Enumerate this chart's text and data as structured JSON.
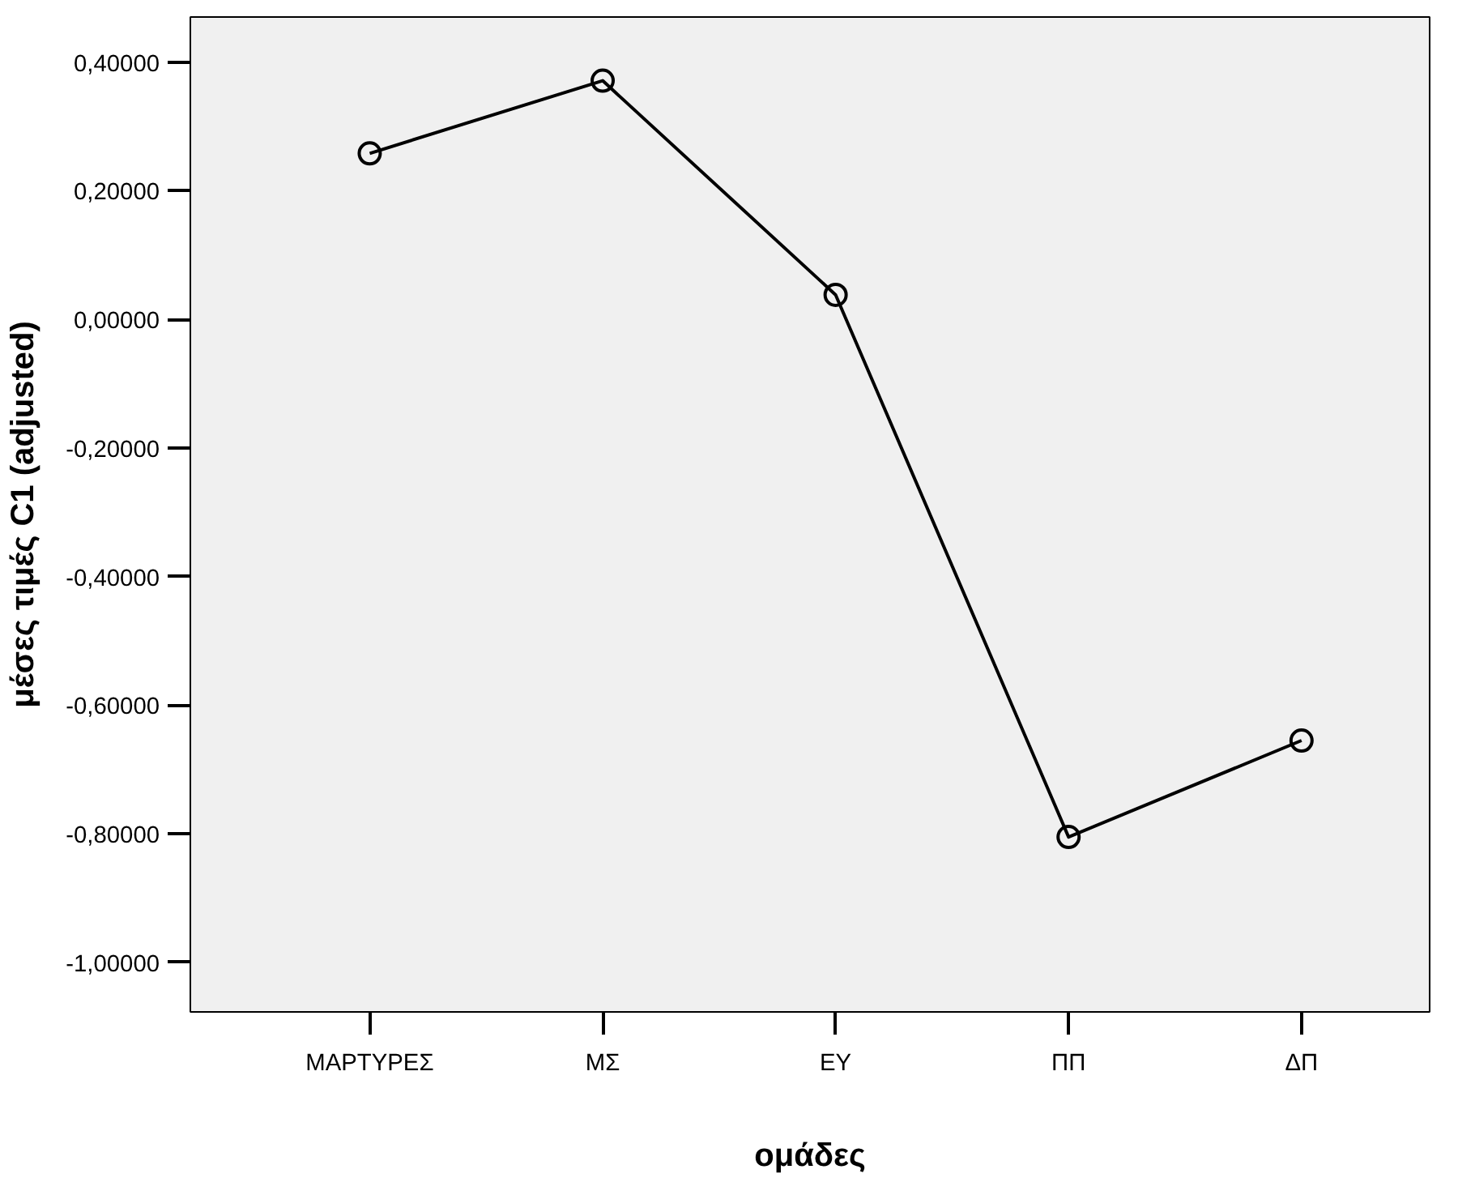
{
  "chart_data": {
    "type": "line",
    "xlabel": "ομάδες",
    "ylabel": "μέσες τιμές C1 (adjusted)",
    "categories": [
      "ΜΑΡΤΥΡΕΣ",
      "ΜΣ",
      "ΕΥ",
      "ΠΠ",
      "ΔΠ"
    ],
    "series": [
      {
        "color": "#000000",
        "values": [
          0.258,
          0.371,
          0.038,
          -0.805,
          -0.655
        ]
      }
    ],
    "ylim": [
      -1.077,
      0.47
    ],
    "yticks": [
      {
        "value": -1.0,
        "label": "-1,00000"
      },
      {
        "value": -0.8,
        "label": "-0,80000"
      },
      {
        "value": -0.6,
        "label": "-0,60000"
      },
      {
        "value": -0.4,
        "label": "-0,40000"
      },
      {
        "value": -0.2,
        "label": "-0,20000"
      },
      {
        "value": 0.0,
        "label": "0,00000"
      },
      {
        "value": 0.2,
        "label": "0,20000"
      },
      {
        "value": 0.4,
        "label": "0,40000"
      }
    ],
    "grid": false,
    "marker": "circle",
    "line_style": "solid"
  }
}
